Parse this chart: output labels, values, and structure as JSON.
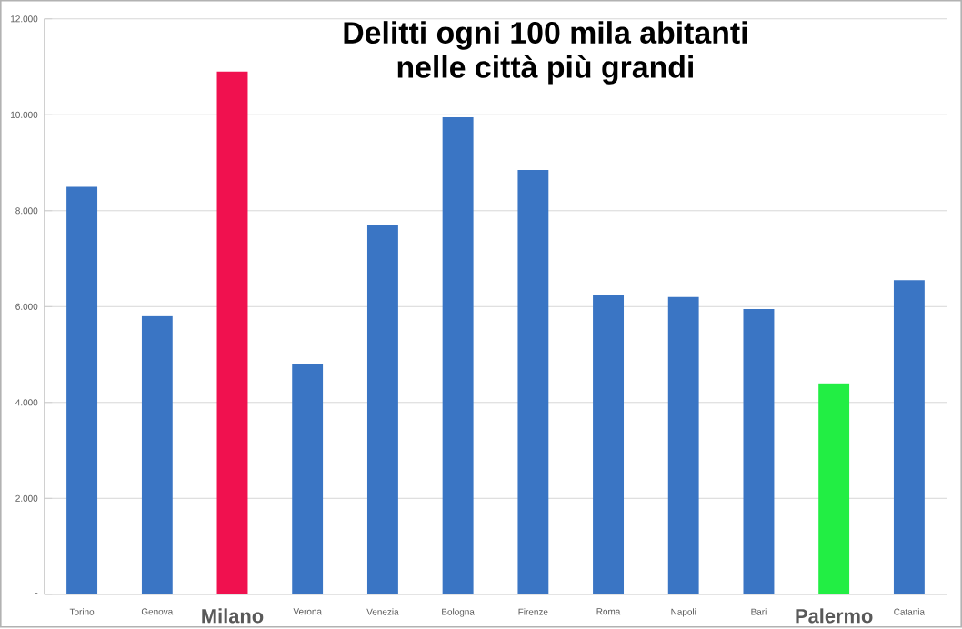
{
  "chart_data": {
    "type": "bar",
    "title": "Delitti ogni 100 mila abitanti\nnelle città più grandi",
    "categories": [
      "Torino",
      "Genova",
      "Milano",
      "Verona",
      "Venezia",
      "Bologna",
      "Firenze",
      "Roma",
      "Napoli",
      "Bari",
      "Palermo",
      "Catania"
    ],
    "values": [
      8500,
      5800,
      10900,
      4800,
      7700,
      9950,
      8850,
      6250,
      6200,
      5950,
      4400,
      6550
    ],
    "colors": [
      "#3a75c4",
      "#3a75c4",
      "#f0114f",
      "#3a75c4",
      "#3a75c4",
      "#3a75c4",
      "#3a75c4",
      "#3a75c4",
      "#3a75c4",
      "#3a75c4",
      "#22ee44",
      "#3a75c4"
    ],
    "ylim": [
      0,
      12000
    ],
    "yticks": [
      {
        "value": 0,
        "label": "-"
      },
      {
        "value": 2000,
        "label": "2.000"
      },
      {
        "value": 4000,
        "label": "4.000"
      },
      {
        "value": 6000,
        "label": "6.000"
      },
      {
        "value": 8000,
        "label": "8.000"
      },
      {
        "value": 10000,
        "label": "10.000"
      },
      {
        "value": 12000,
        "label": "12.000"
      }
    ],
    "grid": "y",
    "legend": false
  }
}
